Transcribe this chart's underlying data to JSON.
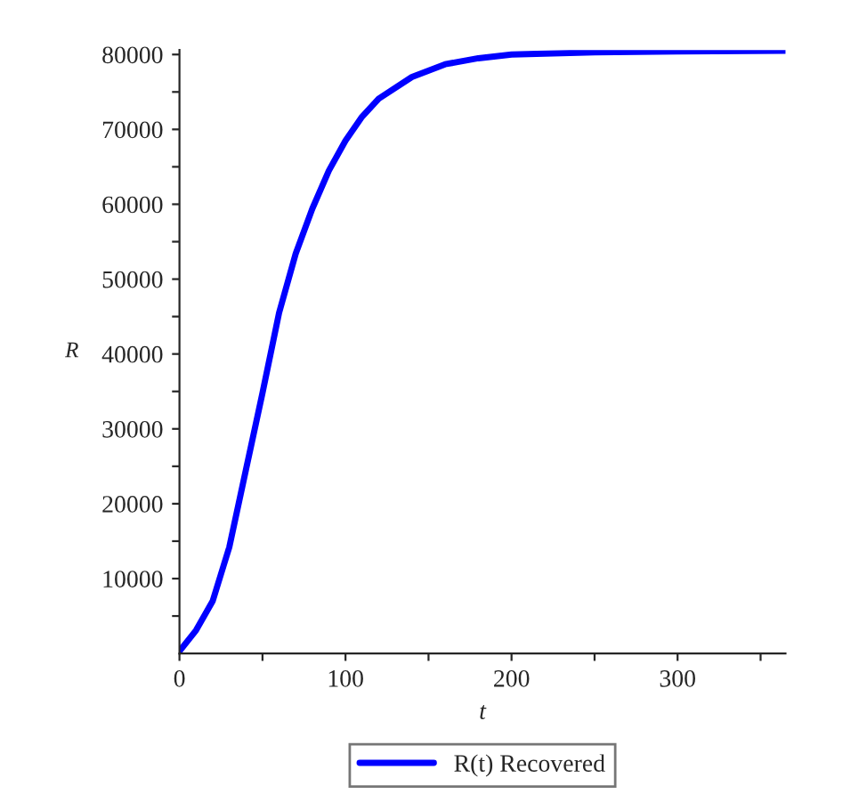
{
  "chart_data": {
    "type": "line",
    "xlabel": "t",
    "ylabel": "R",
    "x": [
      0,
      10,
      20,
      30,
      40,
      50,
      60,
      70,
      80,
      90,
      100,
      110,
      120,
      140,
      160,
      180,
      200,
      250,
      300,
      365
    ],
    "series": [
      {
        "name": "R(t) Recovered",
        "color": "#0000ff",
        "values": [
          300,
          3100,
          7000,
          14200,
          24500,
          34800,
          45500,
          53400,
          59400,
          64500,
          68500,
          71700,
          74100,
          77000,
          78700,
          79500,
          80000,
          80300,
          80400,
          80500
        ]
      }
    ],
    "xlim": [
      0,
      365
    ],
    "ylim": [
      0,
      80600
    ],
    "xticks": [
      0,
      {
        "value": 50,
        "label": null
      },
      100,
      {
        "value": 150,
        "label": null
      },
      200,
      {
        "value": 250,
        "label": null
      },
      300,
      {
        "value": 350,
        "label": null
      }
    ],
    "yticks": [
      {
        "value": 5000,
        "label": null
      },
      10000,
      {
        "value": 15000,
        "label": null
      },
      20000,
      {
        "value": 25000,
        "label": null
      },
      30000,
      {
        "value": 35000,
        "label": null
      },
      40000,
      {
        "value": 45000,
        "label": null
      },
      50000,
      {
        "value": 55000,
        "label": null
      },
      60000,
      {
        "value": 65000,
        "label": null
      },
      70000,
      {
        "value": 75000,
        "label": null
      },
      80000
    ],
    "legend": "bottom",
    "grid": false,
    "line_style": "solid",
    "marker": "none"
  }
}
